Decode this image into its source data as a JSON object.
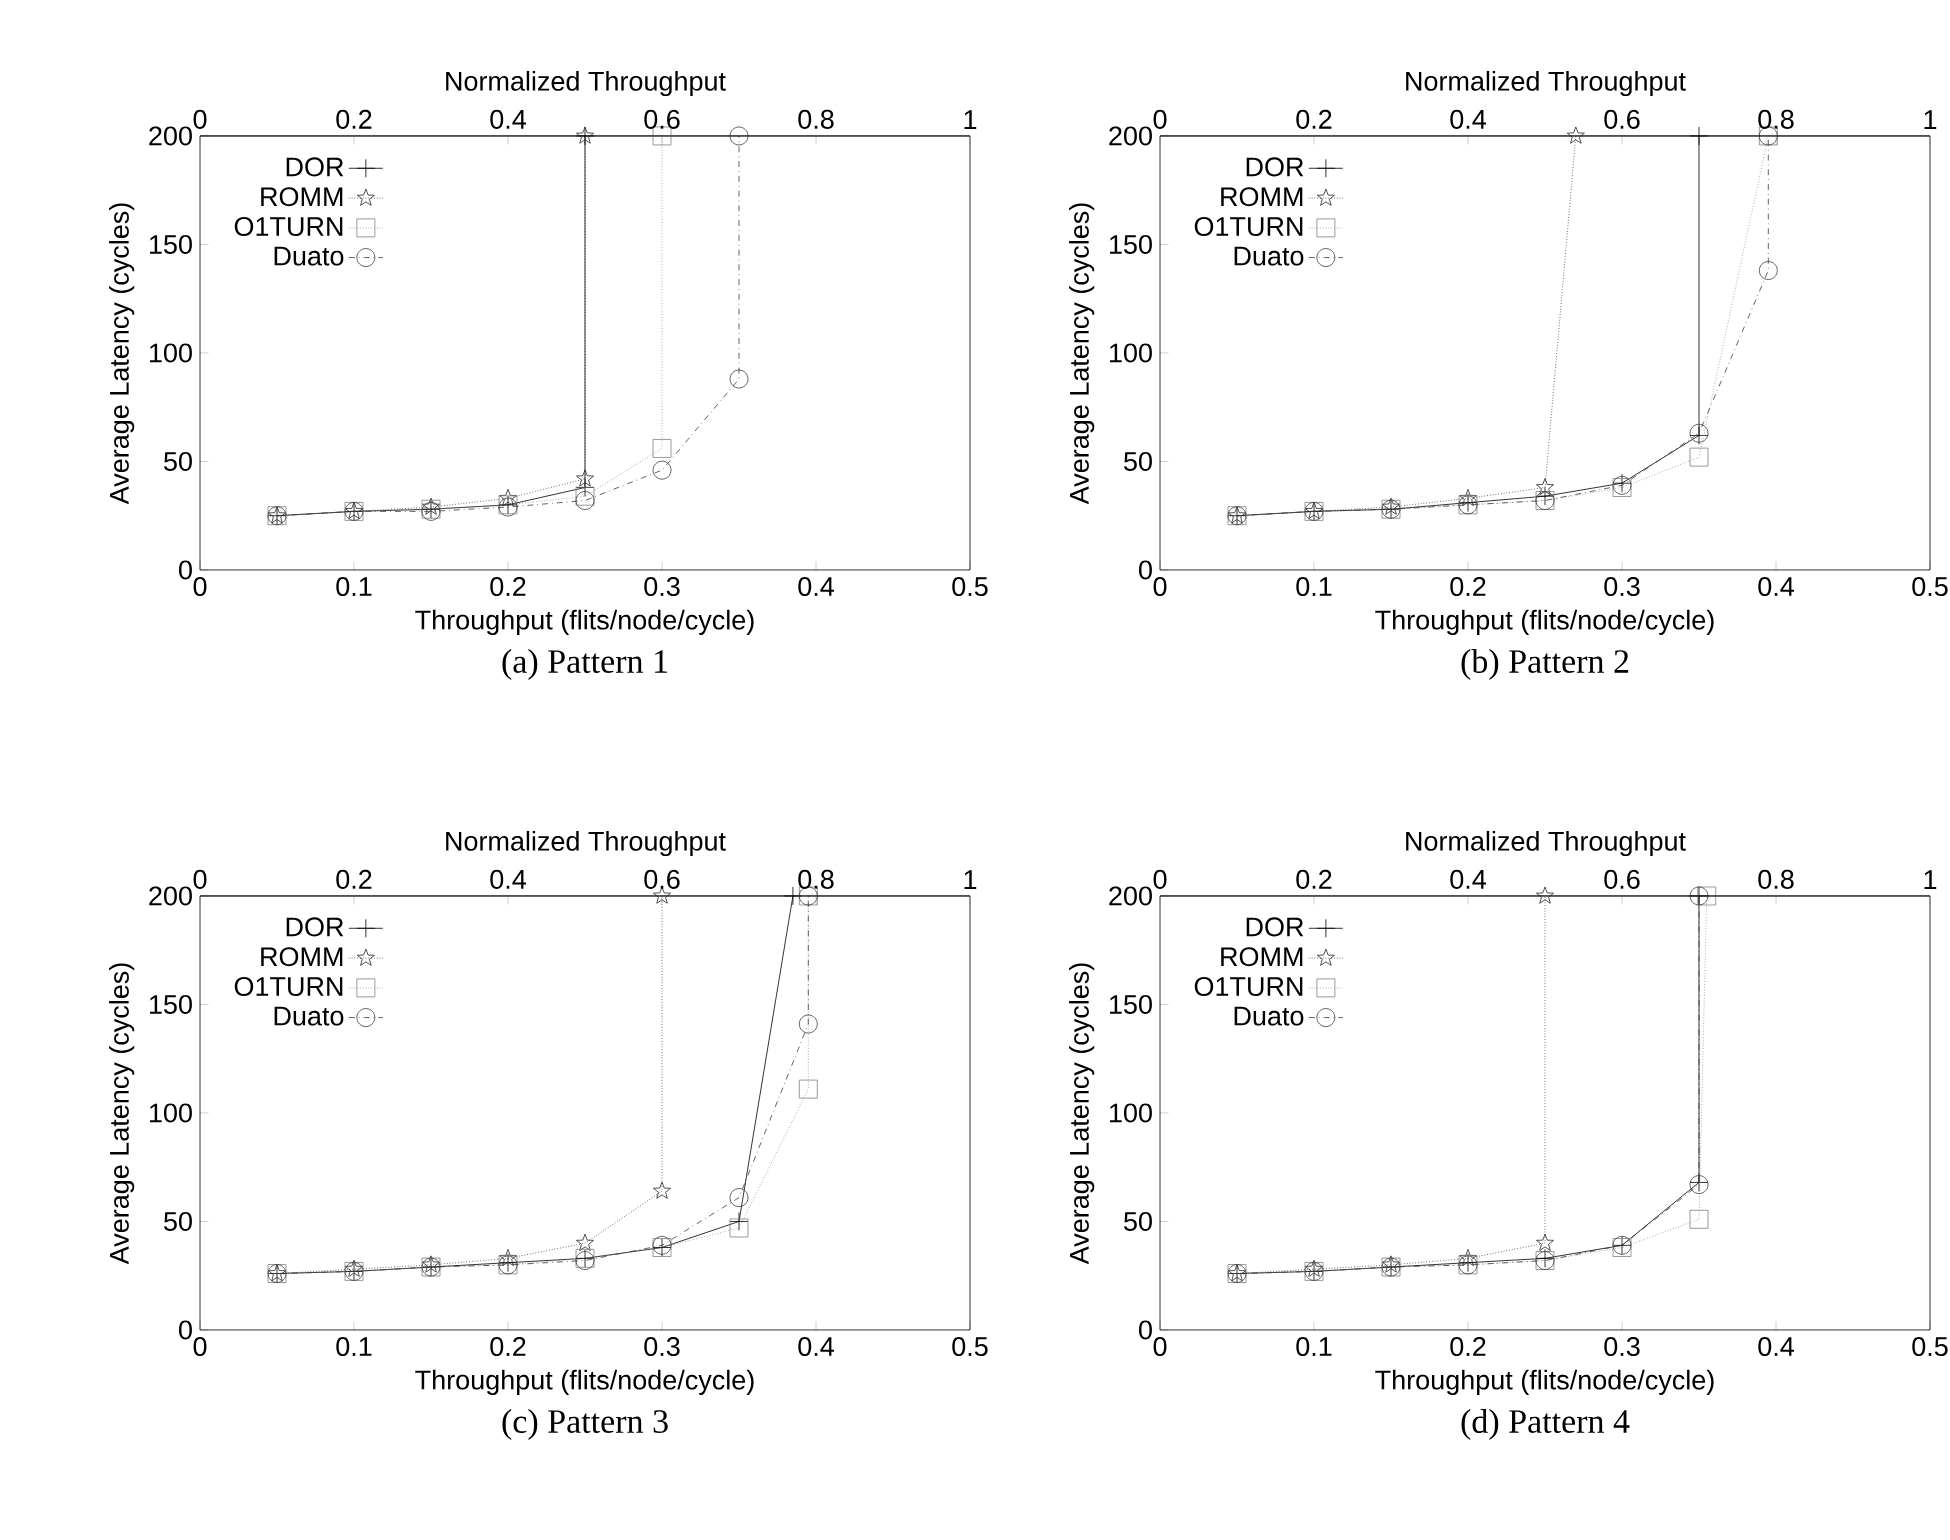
{
  "chart_data": [
    {
      "type": "line",
      "title": "(a) Pattern 1",
      "xlabel": "Throughput (flits/node/cycle)",
      "ylabel": "Average Latency (cycles)",
      "x2label": "Normalized Throughput",
      "xlim": [
        0,
        0.5
      ],
      "xticks": [
        0,
        0.1,
        0.2,
        0.3,
        0.4,
        0.5
      ],
      "x2lim": [
        0,
        1
      ],
      "x2ticks": [
        0,
        0.2,
        0.4,
        0.6,
        0.8,
        1
      ],
      "ylim": [
        0,
        200
      ],
      "yticks": [
        0,
        50,
        100,
        150,
        200
      ],
      "legend": "top left",
      "series": [
        {
          "name": "DOR",
          "color": "#000000",
          "marker": "cross",
          "line_style": "solid",
          "x": [
            0.05,
            0.1,
            0.15,
            0.2,
            0.25,
            0.25
          ],
          "values": [
            25,
            27,
            28,
            30,
            38,
            200
          ]
        },
        {
          "name": "ROMM",
          "color": "#262626",
          "marker": "star",
          "line_style": "dotted",
          "x": [
            0.05,
            0.1,
            0.15,
            0.2,
            0.25,
            0.25
          ],
          "values": [
            25,
            27,
            29,
            33,
            42,
            200
          ]
        },
        {
          "name": "O1TURN",
          "color": "#808080",
          "marker": "square",
          "line_style": "dotted",
          "x": [
            0.05,
            0.1,
            0.15,
            0.2,
            0.25,
            0.3,
            0.3
          ],
          "values": [
            25,
            27,
            28,
            30,
            34,
            56,
            200
          ]
        },
        {
          "name": "Duato",
          "color": "#3c3c3c",
          "marker": "circle",
          "line_style": "dashed",
          "x": [
            0.05,
            0.1,
            0.15,
            0.2,
            0.25,
            0.3,
            0.35,
            0.35
          ],
          "values": [
            25,
            27,
            27,
            29,
            32,
            46,
            88,
            200
          ]
        }
      ]
    },
    {
      "type": "line",
      "title": "(b) Pattern 2",
      "xlabel": "Throughput (flits/node/cycle)",
      "ylabel": "Average Latency (cycles)",
      "x2label": "Normalized Throughput",
      "xlim": [
        0,
        0.5
      ],
      "xticks": [
        0,
        0.1,
        0.2,
        0.3,
        0.4,
        0.5
      ],
      "x2lim": [
        0,
        1
      ],
      "x2ticks": [
        0,
        0.2,
        0.4,
        0.6,
        0.8,
        1
      ],
      "ylim": [
        0,
        200
      ],
      "yticks": [
        0,
        50,
        100,
        150,
        200
      ],
      "legend": "top left",
      "series": [
        {
          "name": "DOR",
          "color": "#000000",
          "marker": "cross",
          "line_style": "solid",
          "x": [
            0.05,
            0.1,
            0.15,
            0.2,
            0.25,
            0.3,
            0.35,
            0.35
          ],
          "values": [
            25,
            27,
            28,
            31,
            34,
            40,
            62,
            200
          ]
        },
        {
          "name": "ROMM",
          "color": "#262626",
          "marker": "star",
          "line_style": "dotted",
          "x": [
            0.05,
            0.1,
            0.15,
            0.2,
            0.25,
            0.27
          ],
          "values": [
            25,
            27,
            29,
            33,
            38,
            200
          ]
        },
        {
          "name": "O1TURN",
          "color": "#808080",
          "marker": "square",
          "line_style": "dotted",
          "x": [
            0.05,
            0.1,
            0.15,
            0.2,
            0.25,
            0.3,
            0.35,
            0.395
          ],
          "values": [
            25,
            27,
            28,
            30,
            32,
            38,
            52,
            200
          ]
        },
        {
          "name": "Duato",
          "color": "#3c3c3c",
          "marker": "circle",
          "line_style": "dashed",
          "x": [
            0.05,
            0.1,
            0.15,
            0.2,
            0.25,
            0.3,
            0.35,
            0.395,
            0.395
          ],
          "values": [
            25,
            27,
            28,
            30,
            32,
            39,
            63,
            138,
            200
          ]
        }
      ]
    },
    {
      "type": "line",
      "title": "(c) Pattern 3",
      "xlabel": "Throughput (flits/node/cycle)",
      "ylabel": "Average Latency (cycles)",
      "x2label": "Normalized Throughput",
      "xlim": [
        0,
        0.5
      ],
      "xticks": [
        0,
        0.1,
        0.2,
        0.3,
        0.4,
        0.5
      ],
      "x2lim": [
        0,
        1
      ],
      "x2ticks": [
        0,
        0.2,
        0.4,
        0.6,
        0.8,
        1
      ],
      "ylim": [
        0,
        200
      ],
      "yticks": [
        0,
        50,
        100,
        150,
        200
      ],
      "legend": "top left",
      "series": [
        {
          "name": "DOR",
          "color": "#000000",
          "marker": "cross",
          "line_style": "solid",
          "x": [
            0.05,
            0.1,
            0.15,
            0.2,
            0.25,
            0.3,
            0.35,
            0.385
          ],
          "values": [
            26,
            27,
            29,
            31,
            33,
            38,
            50,
            200
          ]
        },
        {
          "name": "ROMM",
          "color": "#262626",
          "marker": "star",
          "line_style": "dotted",
          "x": [
            0.05,
            0.1,
            0.15,
            0.2,
            0.25,
            0.3,
            0.3
          ],
          "values": [
            26,
            28,
            30,
            33,
            40,
            64,
            200
          ]
        },
        {
          "name": "O1TURN",
          "color": "#808080",
          "marker": "square",
          "line_style": "dotted",
          "x": [
            0.05,
            0.1,
            0.15,
            0.2,
            0.25,
            0.3,
            0.35,
            0.395,
            0.395
          ],
          "values": [
            26,
            27,
            29,
            30,
            33,
            38,
            47,
            111,
            200
          ]
        },
        {
          "name": "Duato",
          "color": "#3c3c3c",
          "marker": "circle",
          "line_style": "dashed",
          "x": [
            0.05,
            0.1,
            0.15,
            0.2,
            0.25,
            0.3,
            0.35,
            0.395,
            0.395
          ],
          "values": [
            26,
            27,
            29,
            30,
            32,
            39,
            61,
            141,
            200
          ]
        }
      ]
    },
    {
      "type": "line",
      "title": "(d) Pattern 4",
      "xlabel": "Throughput (flits/node/cycle)",
      "ylabel": "Average Latency (cycles)",
      "x2label": "Normalized Throughput",
      "xlim": [
        0,
        0.5
      ],
      "xticks": [
        0,
        0.1,
        0.2,
        0.3,
        0.4,
        0.5
      ],
      "x2lim": [
        0,
        1
      ],
      "x2ticks": [
        0,
        0.2,
        0.4,
        0.6,
        0.8,
        1
      ],
      "ylim": [
        0,
        200
      ],
      "yticks": [
        0,
        50,
        100,
        150,
        200
      ],
      "legend": "top left",
      "series": [
        {
          "name": "DOR",
          "color": "#000000",
          "marker": "cross",
          "line_style": "solid",
          "x": [
            0.05,
            0.1,
            0.15,
            0.2,
            0.25,
            0.3,
            0.35,
            0.35
          ],
          "values": [
            26,
            27,
            29,
            31,
            33,
            39,
            68,
            200
          ]
        },
        {
          "name": "ROMM",
          "color": "#262626",
          "marker": "star",
          "line_style": "dotted",
          "x": [
            0.05,
            0.1,
            0.15,
            0.2,
            0.25,
            0.25
          ],
          "values": [
            26,
            28,
            30,
            33,
            40,
            200
          ]
        },
        {
          "name": "O1TURN",
          "color": "#808080",
          "marker": "square",
          "line_style": "dotted",
          "x": [
            0.05,
            0.1,
            0.15,
            0.2,
            0.25,
            0.3,
            0.35,
            0.355
          ],
          "values": [
            26,
            27,
            29,
            30,
            32,
            38,
            51,
            200
          ]
        },
        {
          "name": "Duato",
          "color": "#3c3c3c",
          "marker": "circle",
          "line_style": "dashed",
          "x": [
            0.05,
            0.1,
            0.15,
            0.2,
            0.25,
            0.3,
            0.35,
            0.35
          ],
          "values": [
            26,
            27,
            29,
            30,
            32,
            39,
            67,
            200
          ]
        }
      ]
    }
  ]
}
